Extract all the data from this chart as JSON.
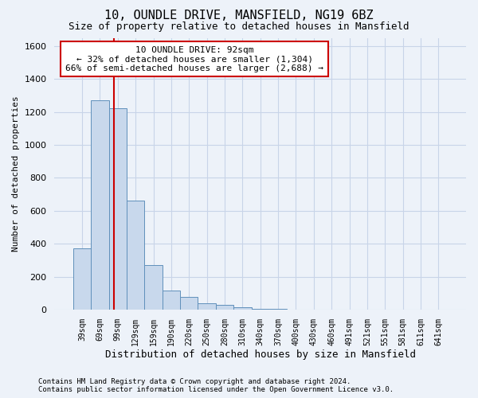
{
  "title1": "10, OUNDLE DRIVE, MANSFIELD, NG19 6BZ",
  "title2": "Size of property relative to detached houses in Mansfield",
  "xlabel": "Distribution of detached houses by size in Mansfield",
  "ylabel": "Number of detached properties",
  "footnote1": "Contains HM Land Registry data © Crown copyright and database right 2024.",
  "footnote2": "Contains public sector information licensed under the Open Government Licence v3.0.",
  "categories": [
    "39sqm",
    "69sqm",
    "99sqm",
    "129sqm",
    "159sqm",
    "190sqm",
    "220sqm",
    "250sqm",
    "280sqm",
    "310sqm",
    "340sqm",
    "370sqm",
    "400sqm",
    "430sqm",
    "460sqm",
    "491sqm",
    "521sqm",
    "551sqm",
    "581sqm",
    "611sqm",
    "641sqm"
  ],
  "values": [
    370,
    1270,
    1220,
    660,
    270,
    115,
    75,
    40,
    30,
    15,
    5,
    3,
    2,
    2,
    1,
    0,
    0,
    0,
    0,
    0,
    0
  ],
  "bar_color": "#c8d8ec",
  "bar_edge_color": "#6090bb",
  "red_line_x": 1.77,
  "annotation_line1": "10 OUNDLE DRIVE: 92sqm",
  "annotation_line2": "← 32% of detached houses are smaller (1,304)",
  "annotation_line3": "66% of semi-detached houses are larger (2,688) →",
  "annotation_box_color": "#ffffff",
  "annotation_box_edge": "#cc0000",
  "grid_color": "#c8d4e8",
  "ylim": [
    0,
    1650
  ],
  "yticks": [
    0,
    200,
    400,
    600,
    800,
    1000,
    1200,
    1400,
    1600
  ],
  "background_color": "#edf2f9",
  "title1_fontsize": 11,
  "title2_fontsize": 9,
  "ylabel_fontsize": 8,
  "xlabel_fontsize": 9
}
